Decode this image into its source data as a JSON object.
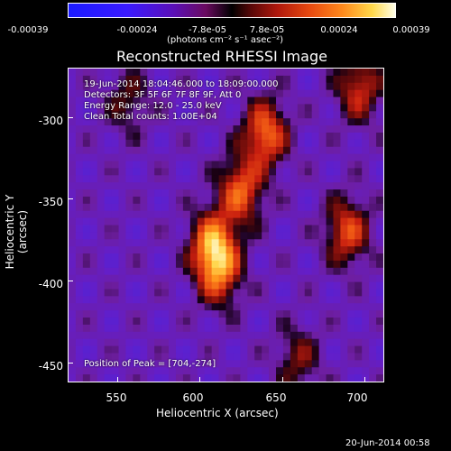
{
  "colorbar": {
    "ticks": [
      "-0.00039",
      "-0.00024",
      "-7.8e-05",
      "7.8e-05",
      "0.00024",
      "0.00039"
    ],
    "units": "(photons cm⁻² s⁻¹ asec⁻²)"
  },
  "annotations": {
    "time": "19-Jun-2014 18:04:46.000 to 18:09:00.000",
    "detectors": "Detectors: 3F 5F 6F 7F 8F 9F, Att 0",
    "energy": "Energy Range: 12.0 - 25.0 keV",
    "clean": "Clean    Total counts: 1.00E+04",
    "peak": "Position of Peak = [704,-274]"
  },
  "footer": {
    "date": "20-Jun-2014 00:58"
  },
  "chart_data": {
    "type": "heatmap",
    "title": "Reconstructed RHESSI Image",
    "xlabel": "Heliocentric X (arcsec)",
    "ylabel": "Heliocentric Y (arcsec)",
    "xlim": [
      520,
      712
    ],
    "ylim": [
      -462,
      -270
    ],
    "x_ticks": [
      "550",
      "600",
      "650",
      "700"
    ],
    "y_ticks": [
      "-300",
      "-350",
      "-400",
      "-450"
    ],
    "x_tick_values": [
      550,
      600,
      650,
      700
    ],
    "y_tick_values": [
      -300,
      -350,
      -400,
      -450
    ],
    "colorbar_range": [
      -0.00039,
      0.00039
    ],
    "peak_position": [
      704,
      -274
    ],
    "grid": false,
    "colors": {
      "background": "#000000",
      "low": "#1a1aff",
      "mid": "#000000",
      "high": "#ffffe8"
    },
    "sources": [
      {
        "x": 640,
        "y": -310,
        "amplitude": 0.0003
      },
      {
        "x": 625,
        "y": -345,
        "amplitude": 0.00028
      },
      {
        "x": 608,
        "y": -378,
        "amplitude": 0.00033
      },
      {
        "x": 612,
        "y": -395,
        "amplitude": 0.00026
      },
      {
        "x": 690,
        "y": -370,
        "amplitude": 0.00025
      },
      {
        "x": 697,
        "y": -282,
        "amplitude": 0.00022
      },
      {
        "x": 660,
        "y": -448,
        "amplitude": 0.00014
      },
      {
        "x": 556,
        "y": -290,
        "amplitude": 0.00012
      }
    ]
  }
}
